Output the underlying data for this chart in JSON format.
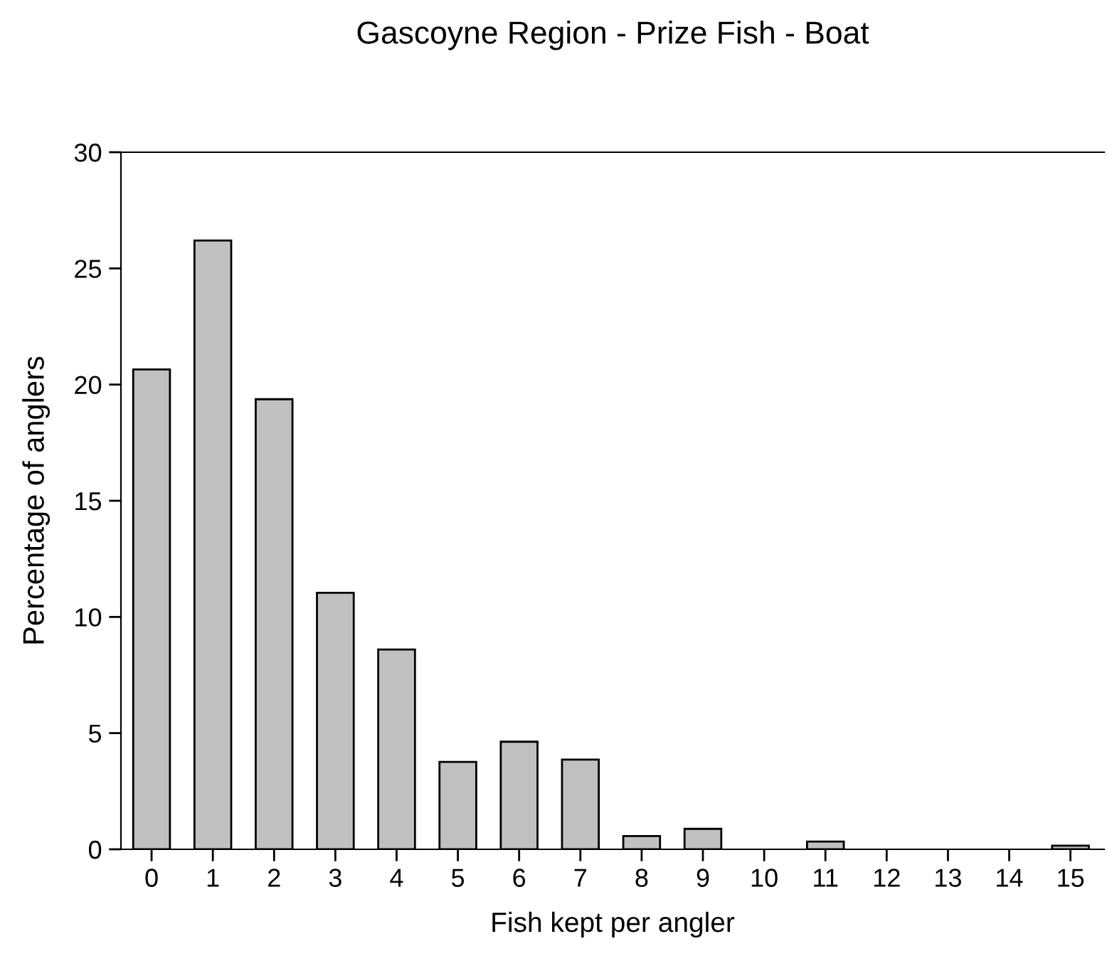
{
  "chart_data": {
    "type": "bar",
    "title": "Gascoyne Region - Prize Fish - Boat",
    "xlabel": "Fish kept per angler",
    "ylabel": "Percentage of anglers",
    "categories": [
      "0",
      "1",
      "2",
      "3",
      "4",
      "5",
      "6",
      "7",
      "8",
      "9",
      "10",
      "11",
      "12",
      "13",
      "14",
      "15"
    ],
    "values": [
      20.65,
      26.2,
      19.37,
      11.04,
      8.6,
      3.76,
      4.63,
      3.86,
      0.57,
      0.88,
      0,
      0.33,
      0,
      0,
      0,
      0.16
    ],
    "color": "#c0c0c0",
    "ylim": [
      0,
      30
    ],
    "yticks": [
      0,
      5,
      10,
      15,
      20,
      25,
      30
    ],
    "grid": false
  }
}
